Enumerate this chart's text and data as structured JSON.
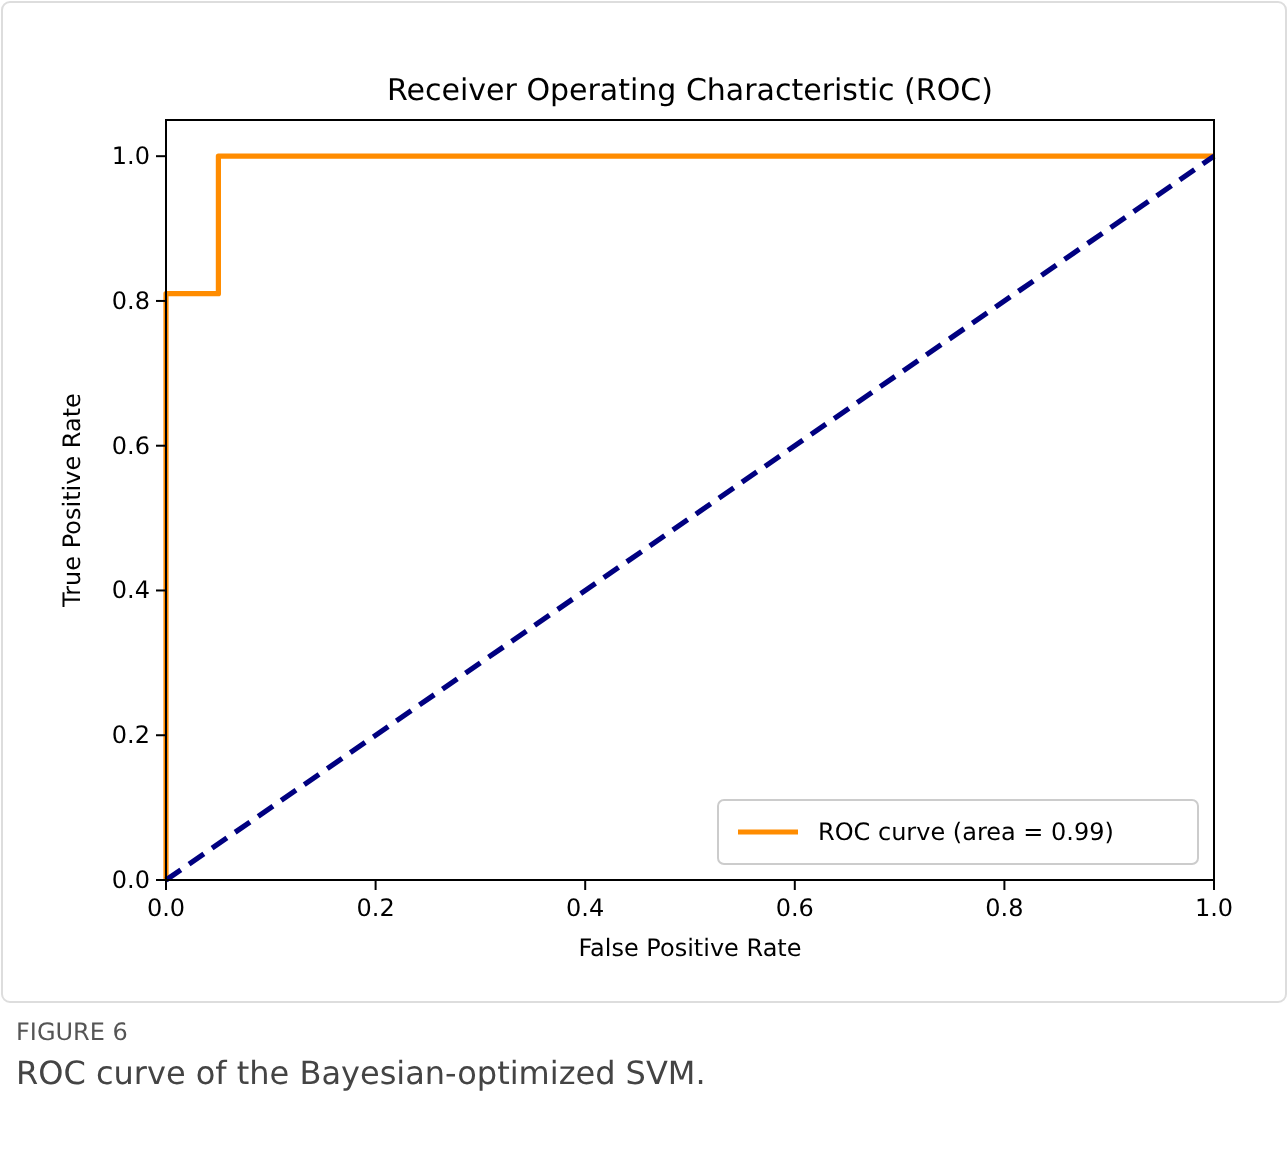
{
  "chart_data": {
    "type": "line",
    "title": "Receiver Operating Characteristic (ROC)",
    "xlabel": "False Positive Rate",
    "ylabel": "True Positive Rate",
    "xlim": [
      0,
      1
    ],
    "ylim": [
      0,
      1.05
    ],
    "xticks": [
      {
        "value": 0,
        "label": "0.0"
      },
      {
        "value": 0.2,
        "label": "0.2"
      },
      {
        "value": 0.4,
        "label": "0.4"
      },
      {
        "value": 0.6,
        "label": "0.6"
      },
      {
        "value": 0.8,
        "label": "0.8"
      },
      {
        "value": 1,
        "label": "1.0"
      }
    ],
    "yticks": [
      {
        "value": 0,
        "label": "0.0"
      },
      {
        "value": 0.2,
        "label": "0.2"
      },
      {
        "value": 0.4,
        "label": "0.4"
      },
      {
        "value": 0.6,
        "label": "0.6"
      },
      {
        "value": 0.8,
        "label": "0.8"
      },
      {
        "value": 1,
        "label": "1.0"
      }
    ],
    "legend": "bottom right",
    "grid": false,
    "series": [
      {
        "name": "ROC curve (area = 0.99)",
        "color": "#ff8c00",
        "line_style": "solid",
        "x": [
          0,
          0,
          0.05,
          0.05,
          1
        ],
        "values": [
          0,
          0.81,
          0.81,
          1,
          1
        ]
      },
      {
        "color": "#000080",
        "line_style": "dashed",
        "x": [
          0,
          1
        ],
        "values": [
          0,
          1
        ]
      }
    ],
    "annotations": [
      "FIGURE 6",
      "ROC curve of the Bayesian-optimized SVM."
    ]
  }
}
